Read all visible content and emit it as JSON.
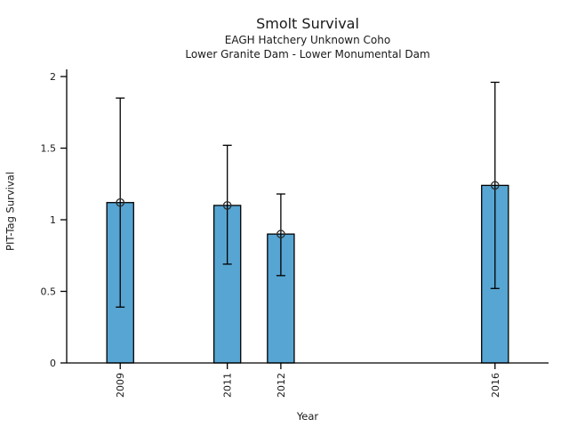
{
  "chart_data": {
    "type": "bar",
    "title": "Smolt Survival",
    "subtitle1": "EAGH Hatchery Unknown Coho",
    "subtitle2": "Lower Granite Dam - Lower Monumental Dam",
    "xlabel": "Year",
    "ylabel": "PIT-Tag Survival",
    "categories": [
      "2009",
      "2011",
      "2012",
      "2016"
    ],
    "x": [
      2009,
      2011,
      2012,
      2016
    ],
    "values": [
      1.12,
      1.1,
      0.9,
      1.24
    ],
    "error_low": [
      0.39,
      0.69,
      0.61,
      0.52
    ],
    "error_high": [
      1.85,
      1.52,
      1.18,
      1.96
    ],
    "xlim": [
      2008,
      2017
    ],
    "ylim": [
      0,
      2.05
    ],
    "yticks": [
      0,
      0.5,
      1,
      1.5,
      2
    ],
    "ytick_labels": [
      "0",
      "0.5",
      "1",
      "1.5",
      "2"
    ],
    "bar_width_x_units": 0.5,
    "grid": false,
    "legend": "none",
    "marker": "open-circle",
    "colors": {
      "bar_fill": "#57a5d3",
      "bar_edge": "#000000",
      "error": "#000000",
      "marker_stroke": "#2b2b2b",
      "text": "#191919",
      "background": "#ffffff"
    }
  }
}
